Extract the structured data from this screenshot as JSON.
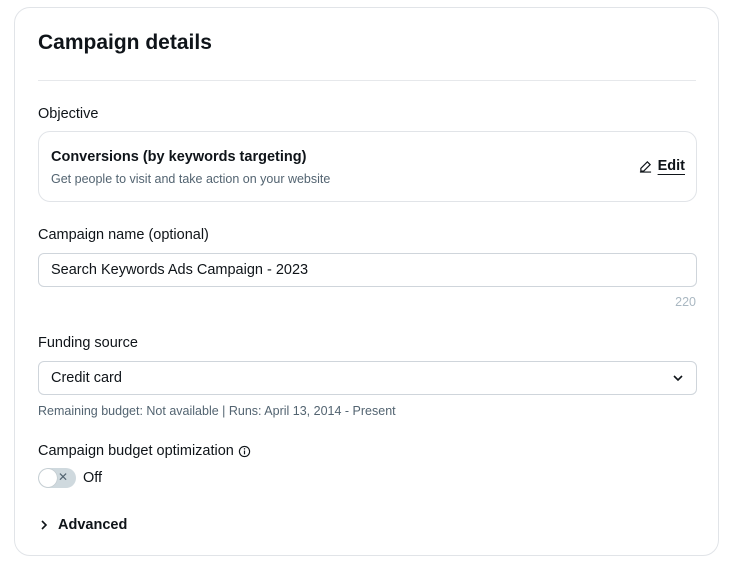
{
  "title": "Campaign details",
  "objective": {
    "label": "Objective",
    "name": "Conversions (by keywords targeting)",
    "description": "Get people to visit and take action on your website",
    "edit_label": "Edit"
  },
  "campaign_name": {
    "label": "Campaign name",
    "optional": "(optional)",
    "value": "Search Keywords Ads Campaign - 2023",
    "char_count": "220"
  },
  "funding": {
    "label": "Funding source",
    "value": "Credit card",
    "info": "Remaining budget: Not available | Runs: April 13, 2014 - Present"
  },
  "cbo": {
    "label": "Campaign budget optimization",
    "toggle_state": "Off",
    "toggle_on": false
  },
  "advanced": {
    "label": "Advanced"
  }
}
